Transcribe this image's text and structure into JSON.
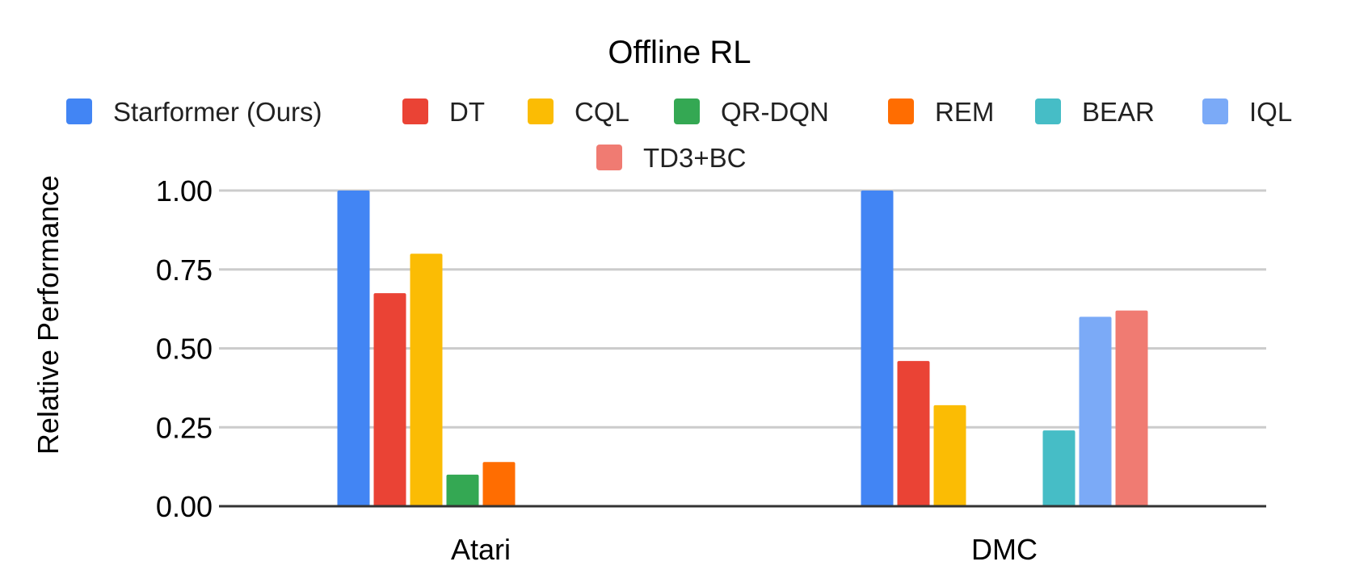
{
  "chart_data": {
    "type": "bar",
    "title": "Offline RL",
    "xlabel": "",
    "ylabel": "Relative Performance",
    "categories": [
      "Atari",
      "DMC"
    ],
    "ylim": [
      0,
      1
    ],
    "yticks": [
      "0.00",
      "0.25",
      "0.50",
      "0.75",
      "1.00"
    ],
    "grid": true,
    "legend_position": "top",
    "series": [
      {
        "name": "Starformer (Ours)",
        "color": "#4285F4",
        "values": [
          1.0,
          1.0
        ]
      },
      {
        "name": "DT",
        "color": "#EA4335",
        "values": [
          0.675,
          0.46
        ]
      },
      {
        "name": "CQL",
        "color": "#FBBC04",
        "values": [
          0.8,
          0.32
        ]
      },
      {
        "name": "QR-DQN",
        "color": "#34A853",
        "values": [
          0.1,
          null
        ]
      },
      {
        "name": "REM",
        "color": "#FF6D01",
        "values": [
          0.14,
          null
        ]
      },
      {
        "name": "BEAR",
        "color": "#46BDC6",
        "values": [
          null,
          0.24
        ]
      },
      {
        "name": "IQL",
        "color": "#7BAAF7",
        "values": [
          null,
          0.6
        ]
      },
      {
        "name": "TD3+BC",
        "color": "#F07B72",
        "values": [
          null,
          0.62
        ]
      }
    ]
  }
}
